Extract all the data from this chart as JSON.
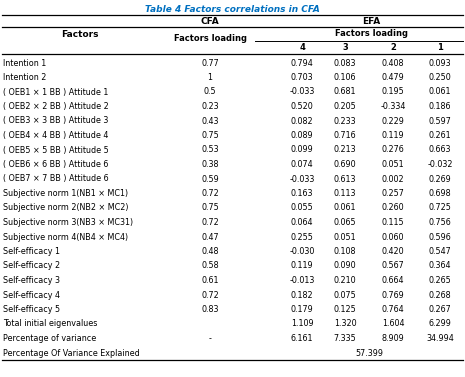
{
  "title": "Table 4 Factors correlations in CFA",
  "rows": [
    [
      "Intention 1",
      "0.77",
      "0.794",
      "0.083",
      "0.408",
      "0.093"
    ],
    [
      "Intention 2",
      "1",
      "0.703",
      "0.106",
      "0.479",
      "0.250"
    ],
    [
      "( OEB1 × 1 BB ) Attitude 1",
      "0.5",
      "-0.033",
      "0.681",
      "0.195",
      "0.061"
    ],
    [
      "( OEB2 × 2 BB ) Attitude 2",
      "0.23",
      "0.520",
      "0.205",
      "-0.334",
      "0.186"
    ],
    [
      "( OEB3 × 3 BB ) Attitude 3",
      "0.43",
      "0.082",
      "0.233",
      "0.229",
      "0.597"
    ],
    [
      "( OEB4 × 4 BB ) Attitude 4",
      "0.75",
      "0.089",
      "0.716",
      "0.119",
      "0.261"
    ],
    [
      "( OEB5 × 5 BB ) Attitude 5",
      "0.53",
      "0.099",
      "0.213",
      "0.276",
      "0.663"
    ],
    [
      "( OEB6 × 6 BB ) Attitude 6",
      "0.38",
      "0.074",
      "0.690",
      "0.051",
      "-0.032"
    ],
    [
      "( OEB7 × 7 BB ) Attitude 6",
      "0.59",
      "-0.033",
      "0.613",
      "0.002",
      "0.269"
    ],
    [
      "Subjective norm 1(NB1 × MC1)",
      "0.72",
      "0.163",
      "0.113",
      "0.257",
      "0.698"
    ],
    [
      "Subjective norm 2(NB2 × MC2)",
      "0.75",
      "0.055",
      "0.061",
      "0.260",
      "0.725"
    ],
    [
      "Subjective norm 3(NB3 × MC31)",
      "0.72",
      "0.064",
      "0.065",
      "0.115",
      "0.756"
    ],
    [
      "Subjective norm 4(NB4 × MC4)",
      "0.47",
      "0.255",
      "0.051",
      "0.060",
      "0.596"
    ],
    [
      "Self-efficacy 1",
      "0.48",
      "-0.030",
      "0.108",
      "0.420",
      "0.547"
    ],
    [
      "Self-efficacy 2",
      "0.58",
      "0.119",
      "0.090",
      "0.567",
      "0.364"
    ],
    [
      "Self-efficacy 3",
      "0.61",
      "-0.013",
      "0.210",
      "0.664",
      "0.265"
    ],
    [
      "Self-efficacy 4",
      "0.72",
      "0.182",
      "0.075",
      "0.769",
      "0.268"
    ],
    [
      "Self-efficacy 5",
      "0.83",
      "0.179",
      "0.125",
      "0.764",
      "0.267"
    ],
    [
      "Total initial eigenvalues",
      "",
      "1.109",
      "1.320",
      "1.604",
      "6.299"
    ],
    [
      "Percentage of variance",
      "-",
      "6.161",
      "7.335",
      "8.909",
      "34.994"
    ],
    [
      "Percentage Of Variance Explained",
      "",
      "",
      "57.399",
      "",
      ""
    ]
  ],
  "title_color": "#0070C0",
  "line_color": "black",
  "font_size_data": 5.8,
  "font_size_header": 6.5,
  "font_size_title": 6.5
}
